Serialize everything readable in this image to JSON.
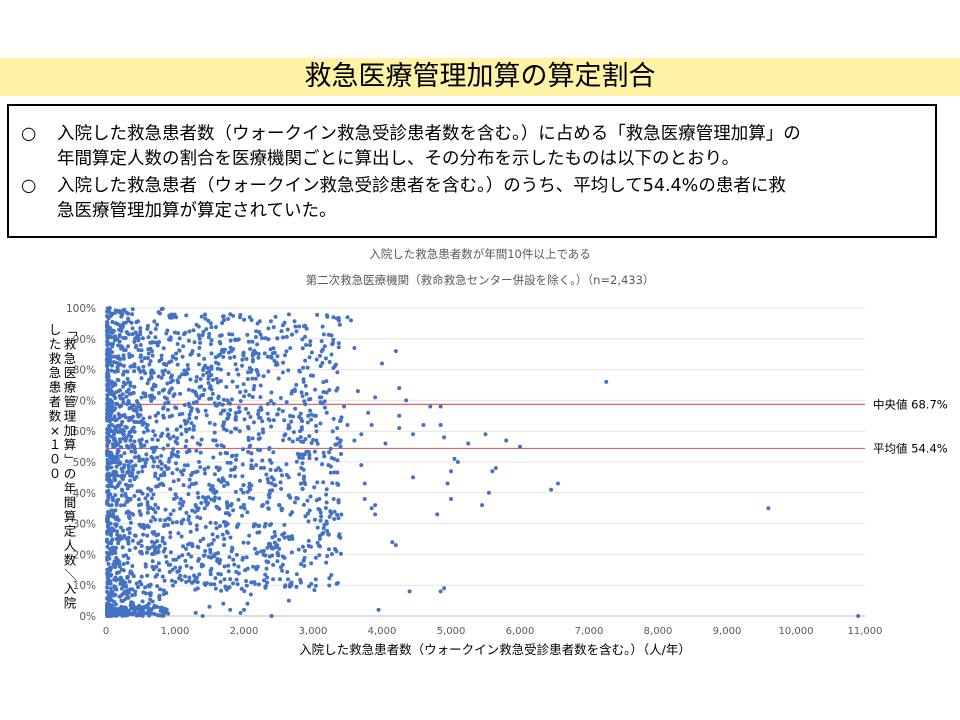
{
  "slide_title": "救急医療管理加算の算定割合",
  "summary": {
    "bullets": [
      {
        "mark": "○",
        "lines": [
          "入院した救急患者数（ウォークイン救急受診患者数を含む。）に占める「救急医療管理加算」の",
          "年間算定人数の割合を医療機関ごとに算出し、その分布を示したものは以下のとおり。"
        ]
      },
      {
        "mark": "○",
        "lines": [
          "入院した救急患者（ウォークイン救急受診患者を含む。）のうち、平均して54.4%の患者に救",
          "急医療管理加算が算定されていた。"
        ]
      }
    ]
  },
  "chart_data": {
    "type": "scatter",
    "title": "入院した救急患者数が年間10件以上である",
    "subtitle": "第二次救急医療機関（救命救急センター併設を除く。）（n=2,433）",
    "xlabel": "入院した救急患者数（ウォークイン救急受診患者数を含む。）（人/年）",
    "ylabel": "「救急医療管理加算」の年間算定人数／入院した救急患者数×１００",
    "xlim": [
      0,
      11000
    ],
    "ylim": [
      0,
      100
    ],
    "x_ticks": [
      "0",
      "1,000",
      "2,000",
      "3,000",
      "4,000",
      "5,000",
      "6,000",
      "7,000",
      "8,000",
      "9,000",
      "10,000",
      "11,000"
    ],
    "y_ticks": [
      "0%",
      "10%",
      "20%",
      "30%",
      "40%",
      "50%",
      "60%",
      "70%",
      "80%",
      "90%",
      "100%"
    ],
    "grid": "horizontal",
    "point_color": "#4472c4",
    "reference_lines": [
      {
        "label": "中央値 68.7%",
        "value": 68.7,
        "color": "#e06666"
      },
      {
        "label": "平均値 54.4%",
        "value": 54.4,
        "color": "#e06666"
      }
    ],
    "n": 2433,
    "series": [
      {
        "points": [
          [
            7250,
            76
          ],
          [
            9600,
            35
          ],
          [
            10900,
            0
          ],
          [
            6550,
            43
          ],
          [
            6450,
            41
          ],
          [
            5800,
            57
          ],
          [
            5650,
            48
          ],
          [
            5600,
            47
          ],
          [
            5500,
            59
          ],
          [
            5550,
            40
          ],
          [
            5450,
            36
          ],
          [
            5100,
            50
          ],
          [
            5050,
            51
          ],
          [
            5000,
            47
          ],
          [
            4950,
            43
          ],
          [
            5000,
            38
          ],
          [
            4850,
            62
          ],
          [
            4900,
            9
          ],
          [
            4850,
            8
          ],
          [
            4800,
            33
          ],
          [
            4900,
            58
          ],
          [
            4850,
            68
          ],
          [
            4450,
            45
          ],
          [
            4400,
            8
          ],
          [
            4350,
            70
          ],
          [
            4600,
            62
          ],
          [
            4450,
            59
          ],
          [
            4200,
            86
          ],
          [
            4250,
            65
          ],
          [
            4250,
            61
          ],
          [
            4200,
            23
          ],
          [
            4150,
            24
          ],
          [
            4050,
            56
          ],
          [
            4000,
            82
          ],
          [
            3950,
            2
          ],
          [
            3900,
            36
          ],
          [
            3900,
            33
          ],
          [
            3850,
            35
          ],
          [
            3800,
            66
          ],
          [
            3900,
            71
          ],
          [
            3850,
            62
          ],
          [
            3750,
            43
          ],
          [
            3750,
            38
          ],
          [
            3700,
            59
          ],
          [
            3650,
            73
          ],
          [
            3600,
            57
          ],
          [
            3550,
            96
          ],
          [
            3500,
            97
          ],
          [
            3600,
            87
          ],
          [
            3500,
            62
          ],
          [
            3450,
            68
          ],
          [
            3400,
            55
          ],
          [
            3350,
            43
          ],
          [
            3300,
            38
          ],
          [
            3250,
            34
          ],
          [
            3200,
            30
          ],
          [
            3150,
            27
          ],
          [
            3100,
            25
          ],
          [
            3050,
            60
          ],
          [
            3000,
            78
          ],
          [
            2950,
            84
          ],
          [
            2900,
            88
          ],
          [
            3100,
            71
          ],
          [
            3200,
            66
          ],
          [
            3300,
            64
          ],
          [
            3350,
            61
          ],
          [
            2800,
            94
          ],
          [
            2700,
            73
          ],
          [
            2600,
            59
          ],
          [
            2500,
            48
          ],
          [
            2400,
            43
          ],
          [
            2350,
            35
          ],
          [
            2300,
            29
          ],
          [
            2250,
            21
          ],
          [
            2200,
            16
          ],
          [
            2150,
            11
          ],
          [
            2100,
            7
          ],
          [
            2050,
            4
          ],
          [
            2000,
            2
          ],
          [
            1950,
            1
          ],
          [
            2600,
            10
          ],
          [
            2650,
            5
          ],
          [
            2400,
            0
          ],
          [
            1400,
            0
          ],
          [
            1800,
            2
          ],
          [
            1700,
            4
          ],
          [
            1500,
            3
          ],
          [
            1300,
            1
          ],
          [
            3050,
            51
          ],
          [
            4250,
            74
          ],
          [
            6000,
            55
          ],
          [
            5250,
            56
          ],
          [
            4700,
            68
          ],
          [
            2800,
            46
          ],
          [
            3050,
            57
          ],
          [
            3700,
            49
          ]
        ]
      }
    ]
  }
}
